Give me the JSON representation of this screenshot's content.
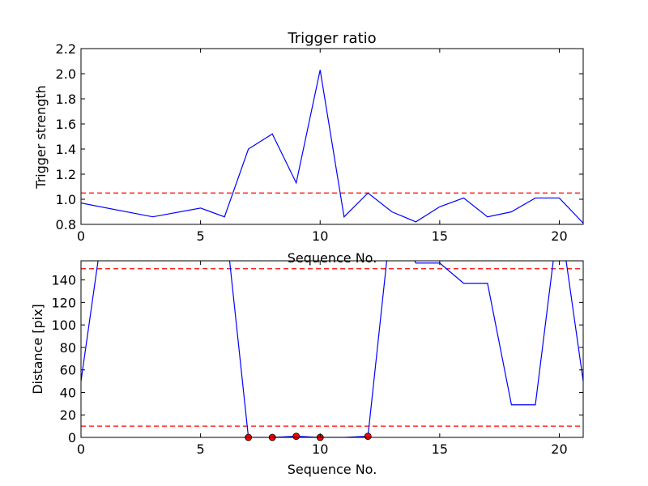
{
  "chart_data": [
    {
      "type": "line",
      "title": "Trigger ratio",
      "xlabel": "Sequence No.",
      "ylabel": "Trigger strength",
      "xlim": [
        0,
        21
      ],
      "ylim": [
        0.8,
        2.2
      ],
      "xticks": [
        0,
        5,
        10,
        15,
        20
      ],
      "yticks": [
        0.8,
        1.0,
        1.2,
        1.4,
        1.6,
        1.8,
        2.0,
        2.2
      ],
      "grid": false,
      "series": [
        {
          "color": "#0000ff",
          "x": [
            0,
            3,
            5,
            6,
            7,
            8,
            9,
            10,
            11,
            12,
            13,
            14,
            15,
            16,
            17,
            18,
            19,
            20,
            21
          ],
          "y": [
            0.97,
            0.86,
            0.93,
            0.86,
            1.4,
            1.52,
            1.13,
            2.03,
            0.86,
            1.05,
            0.9,
            0.82,
            0.94,
            1.01,
            0.86,
            0.9,
            1.01,
            1.01,
            0.81
          ]
        }
      ],
      "hlines": [
        {
          "y": 1.05,
          "color": "#ff0000",
          "style": "dashed"
        }
      ]
    },
    {
      "type": "line",
      "title": "",
      "xlabel": "Sequence No.",
      "ylabel": "Distance [pix]",
      "xlim": [
        0,
        21
      ],
      "ylim": [
        0,
        157
      ],
      "xticks": [
        0,
        5,
        10,
        15,
        20
      ],
      "yticks": [
        0,
        20,
        40,
        60,
        80,
        100,
        120,
        140
      ],
      "grid": false,
      "series": [
        {
          "color": "#0000ff",
          "x": [
            0,
            1,
            6,
            7,
            8,
            9,
            10,
            11,
            12,
            13,
            14,
            15,
            16,
            17,
            18,
            19,
            20,
            21
          ],
          "y": [
            50,
            200,
            200,
            0,
            0,
            1,
            0,
            0,
            1,
            200,
            155,
            155,
            137,
            137,
            29,
            29,
            200,
            50
          ]
        }
      ],
      "markers": {
        "color": "#ff0000",
        "x": [
          7,
          8,
          9,
          10,
          12
        ],
        "y": [
          0,
          0,
          1,
          0,
          1
        ]
      },
      "hlines": [
        {
          "y": 150,
          "color": "#ff0000",
          "style": "dashed"
        },
        {
          "y": 10,
          "color": "#ff0000",
          "style": "dashed"
        }
      ]
    }
  ]
}
